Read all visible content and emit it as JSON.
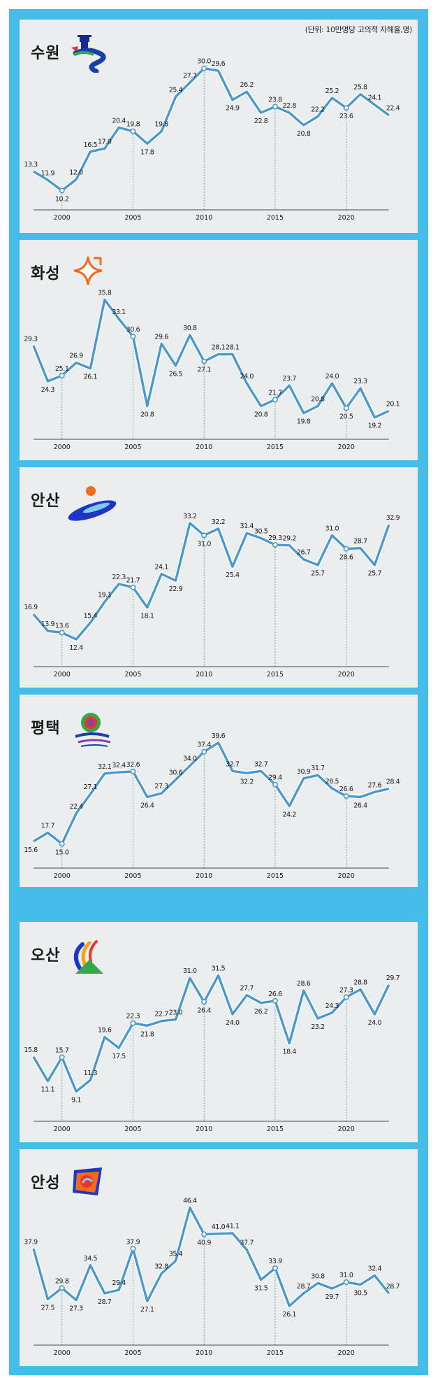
{
  "unit_label": "(단위: 10만명당 고의적 자해율,명)",
  "colors": {
    "frame": "#46bde8",
    "panel": "#eaeeef",
    "line": "#4a98cc",
    "line_border": "#ffffff"
  },
  "chart_data": [
    {
      "type": "line",
      "title": "수원",
      "x": [
        1998,
        1999,
        2000,
        2001,
        2002,
        2003,
        2004,
        2005,
        2006,
        2007,
        2008,
        2009,
        2010,
        2011,
        2012,
        2013,
        2014,
        2015,
        2016,
        2017,
        2018,
        2019,
        2020,
        2021,
        2022,
        2023
      ],
      "values": [
        13.3,
        11.9,
        10.2,
        12.0,
        16.5,
        17.0,
        20.4,
        19.8,
        17.8,
        19.8,
        25.4,
        27.7,
        30.0,
        29.6,
        24.9,
        26.2,
        22.8,
        23.8,
        22.8,
        20.8,
        22.2,
        25.2,
        23.6,
        25.8,
        24.1,
        22.4
      ],
      "ylim": [
        8.2,
        32.8
      ],
      "xticks": [
        "2000",
        "2005",
        "2010",
        "2015",
        "2020"
      ]
    },
    {
      "type": "line",
      "title": "화성",
      "x": [
        1998,
        1999,
        2000,
        2001,
        2002,
        2003,
        2004,
        2005,
        2006,
        2007,
        2008,
        2009,
        2010,
        2011,
        2012,
        2013,
        2014,
        2015,
        2016,
        2017,
        2018,
        2019,
        2020,
        2021,
        2022,
        2023
      ],
      "values": [
        29.3,
        24.3,
        25.1,
        26.9,
        26.1,
        35.8,
        33.1,
        30.6,
        20.8,
        29.6,
        26.5,
        30.8,
        27.1,
        28.1,
        28.1,
        24.0,
        20.8,
        21.7,
        23.7,
        19.8,
        20.8,
        24.0,
        20.5,
        23.3,
        19.2,
        20.1
      ],
      "ylim": [
        16.8,
        38.8
      ],
      "xticks": [
        "2000",
        "2005",
        "2010",
        "2015",
        "2020"
      ]
    },
    {
      "type": "line",
      "title": "안산",
      "x": [
        1998,
        1999,
        2000,
        2001,
        2002,
        2003,
        2004,
        2005,
        2006,
        2007,
        2008,
        2009,
        2010,
        2011,
        2012,
        2013,
        2014,
        2015,
        2016,
        2017,
        2018,
        2019,
        2020,
        2021,
        2022,
        2023
      ],
      "values": [
        16.9,
        13.9,
        13.6,
        12.4,
        15.4,
        19.1,
        22.3,
        21.7,
        18.1,
        24.1,
        22.9,
        33.2,
        31.0,
        32.2,
        25.4,
        31.4,
        30.5,
        29.3,
        29.2,
        26.7,
        25.7,
        31.0,
        28.6,
        28.7,
        25.7,
        32.9
      ],
      "ylim": [
        8.4,
        36.3
      ],
      "xticks": [
        "2000",
        "2005",
        "2010",
        "2015",
        "2020"
      ]
    },
    {
      "type": "line",
      "title": "평택",
      "x": [
        1998,
        1999,
        2000,
        2001,
        2002,
        2003,
        2004,
        2005,
        2006,
        2007,
        2008,
        2009,
        2010,
        2011,
        2012,
        2013,
        2014,
        2015,
        2016,
        2017,
        2018,
        2019,
        2020,
        2021,
        2022,
        2023
      ],
      "values": [
        15.6,
        17.7,
        15.0,
        22.4,
        27.1,
        32.1,
        32.4,
        32.6,
        26.4,
        27.3,
        30.6,
        34.0,
        37.4,
        39.6,
        32.7,
        32.2,
        32.7,
        29.4,
        24.2,
        30.9,
        31.7,
        28.5,
        26.6,
        26.4,
        27.6,
        28.4
      ],
      "ylim": [
        10.8,
        42.8
      ],
      "xticks": [
        "2000",
        "2005",
        "2010",
        "2015",
        "2020"
      ]
    },
    {
      "type": "line",
      "title": "오산",
      "x": [
        1998,
        1999,
        2000,
        2001,
        2002,
        2003,
        2004,
        2005,
        2006,
        2007,
        2008,
        2009,
        2010,
        2011,
        2012,
        2013,
        2014,
        2015,
        2016,
        2017,
        2018,
        2019,
        2020,
        2021,
        2022,
        2023
      ],
      "values": [
        15.8,
        11.1,
        15.7,
        9.1,
        11.3,
        19.6,
        17.5,
        22.3,
        21.8,
        22.7,
        23.0,
        31.0,
        26.4,
        31.5,
        24.0,
        27.7,
        26.2,
        26.6,
        18.4,
        28.6,
        23.2,
        24.3,
        27.3,
        28.8,
        24.0,
        29.7
      ],
      "ylim": [
        4.3,
        34.4
      ],
      "xticks": [
        "2000",
        "2005",
        "2010",
        "2015",
        "2020"
      ]
    },
    {
      "type": "line",
      "title": "안성",
      "x": [
        1998,
        1999,
        2000,
        2001,
        2002,
        2003,
        2004,
        2005,
        2006,
        2007,
        2008,
        2009,
        2010,
        2011,
        2012,
        2013,
        2014,
        2015,
        2016,
        2017,
        2018,
        2019,
        2020,
        2021,
        2022,
        2023
      ],
      "values": [
        37.9,
        27.5,
        29.8,
        27.3,
        34.5,
        28.7,
        29.4,
        37.9,
        27.1,
        32.8,
        35.4,
        46.4,
        40.9,
        41.0,
        41.1,
        37.7,
        31.5,
        33.9,
        26.1,
        28.7,
        30.8,
        29.7,
        31.0,
        30.5,
        32.4,
        28.7
      ],
      "ylim": [
        18.3,
        50.5
      ],
      "xticks": [
        "2000",
        "2005",
        "2010",
        "2015",
        "2020"
      ]
    }
  ]
}
